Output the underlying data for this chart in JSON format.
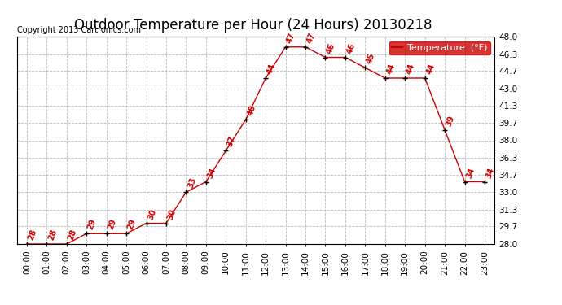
{
  "title": "Outdoor Temperature per Hour (24 Hours) 20130218",
  "copyright": "Copyright 2013 Cartronics.com",
  "legend_label": "Temperature  (°F)",
  "hours": [
    0,
    1,
    2,
    3,
    4,
    5,
    6,
    7,
    8,
    9,
    10,
    11,
    12,
    13,
    14,
    15,
    16,
    17,
    18,
    19,
    20,
    21,
    22,
    23
  ],
  "temps": [
    28,
    28,
    28,
    29,
    29,
    29,
    30,
    30,
    33,
    34,
    37,
    40,
    44,
    47,
    47,
    46,
    46,
    45,
    44,
    44,
    44,
    39,
    34,
    34
  ],
  "ylim": [
    28.0,
    48.0
  ],
  "yticks": [
    28.0,
    29.7,
    31.3,
    33.0,
    34.7,
    36.3,
    38.0,
    39.7,
    41.3,
    43.0,
    44.7,
    46.3,
    48.0
  ],
  "line_color": "#cc0000",
  "marker_color": "black",
  "label_color": "#cc0000",
  "bg_color": "white",
  "grid_color": "#bbbbbb",
  "title_fontsize": 12,
  "tick_fontsize": 7.5,
  "label_fontsize": 7,
  "copyright_fontsize": 7,
  "legend_fontsize": 8
}
